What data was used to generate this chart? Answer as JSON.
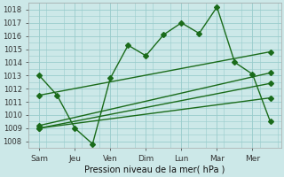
{
  "title": "",
  "xlabel": "Pression niveau de la mer( hPa )",
  "background_color": "#cce8e8",
  "grid_color": "#99cccc",
  "line_color": "#1a6b1a",
  "xlabels": [
    "Sam",
    "Jeu",
    "Ven",
    "Dim",
    "Lun",
    "Mar",
    "Mer"
  ],
  "xtick_pos": [
    0,
    1,
    2,
    3,
    4,
    5,
    6
  ],
  "ylim": [
    1007.5,
    1018.5
  ],
  "yticks": [
    1008,
    1009,
    1010,
    1011,
    1012,
    1013,
    1014,
    1015,
    1016,
    1017,
    1018
  ],
  "xlim": [
    -0.3,
    6.8
  ],
  "series_main": {
    "x": [
      0,
      0.5,
      1.0,
      1.5,
      2.0,
      2.5,
      3.0,
      3.5,
      4.0,
      4.5,
      5.0,
      5.5,
      6.0,
      6.5
    ],
    "y": [
      1013.0,
      1011.5,
      1009.0,
      1007.8,
      1012.8,
      1015.3,
      1014.5,
      1016.1,
      1017.0,
      1016.2,
      1018.2,
      1014.0,
      1013.1,
      1009.5
    ]
  },
  "series_trend": [
    {
      "x": [
        0.0,
        6.5
      ],
      "y": [
        1011.5,
        1014.8
      ]
    },
    {
      "x": [
        0.0,
        6.5
      ],
      "y": [
        1009.2,
        1013.2
      ]
    },
    {
      "x": [
        0.0,
        6.5
      ],
      "y": [
        1009.0,
        1011.3
      ]
    },
    {
      "x": [
        0.0,
        6.5
      ],
      "y": [
        1009.0,
        1012.4
      ]
    }
  ],
  "markersize": 3,
  "linewidth": 1.0
}
